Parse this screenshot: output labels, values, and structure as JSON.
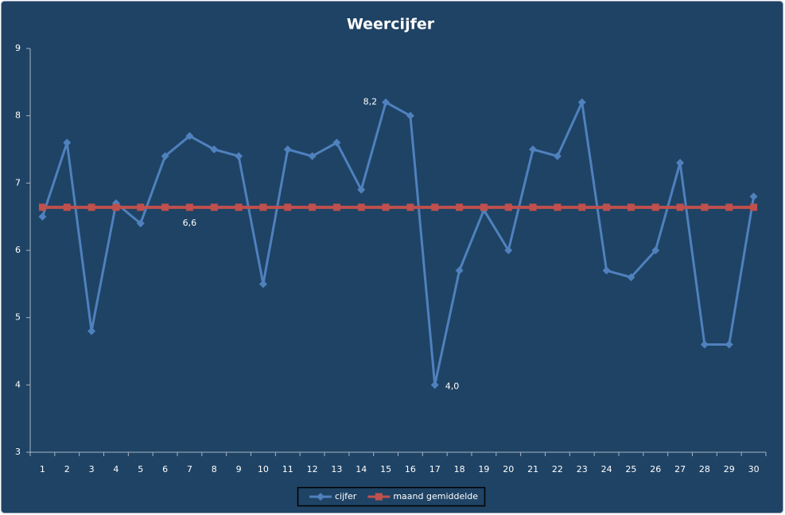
{
  "chart_data": {
    "type": "line",
    "title": "Weercijfer",
    "categories": [
      "1",
      "2",
      "3",
      "4",
      "5",
      "6",
      "7",
      "8",
      "9",
      "10",
      "11",
      "12",
      "13",
      "14",
      "15",
      "16",
      "17",
      "18",
      "19",
      "20",
      "21",
      "22",
      "23",
      "24",
      "25",
      "26",
      "27",
      "28",
      "29",
      "30"
    ],
    "series": [
      {
        "name": "cijfer",
        "color": "#4f81bd",
        "marker": "diamond",
        "values": [
          6.5,
          7.6,
          4.8,
          6.7,
          6.4,
          7.4,
          7.7,
          7.5,
          7.4,
          5.5,
          7.5,
          7.4,
          7.6,
          6.9,
          8.2,
          8.0,
          4.0,
          5.7,
          6.6,
          6.0,
          7.5,
          7.4,
          8.2,
          5.7,
          5.6,
          6.0,
          7.3,
          4.6,
          4.6,
          6.8
        ],
        "value_labels": [
          null,
          null,
          null,
          null,
          null,
          null,
          null,
          null,
          null,
          null,
          null,
          null,
          null,
          null,
          "8,2",
          null,
          "4,0",
          null,
          null,
          null,
          null,
          null,
          null,
          null,
          null,
          null,
          null,
          null,
          null,
          null
        ]
      },
      {
        "name": "maand gemiddelde",
        "color": "#c0504d",
        "marker": "square",
        "values": [
          6.64,
          6.64,
          6.64,
          6.64,
          6.64,
          6.64,
          6.64,
          6.64,
          6.64,
          6.64,
          6.64,
          6.64,
          6.64,
          6.64,
          6.64,
          6.64,
          6.64,
          6.64,
          6.64,
          6.64,
          6.64,
          6.64,
          6.64,
          6.64,
          6.64,
          6.64,
          6.64,
          6.64,
          6.64,
          6.64
        ],
        "value_labels": [
          null,
          null,
          null,
          null,
          null,
          null,
          "6,6",
          null,
          null,
          null,
          null,
          null,
          null,
          null,
          null,
          null,
          null,
          null,
          null,
          null,
          null,
          null,
          null,
          null,
          null,
          null,
          null,
          null,
          null,
          null
        ]
      }
    ],
    "ylim": [
      3,
      9
    ],
    "yticks": [
      3,
      4,
      5,
      6,
      7,
      8,
      9
    ],
    "grid": false,
    "legend": "bottom"
  }
}
